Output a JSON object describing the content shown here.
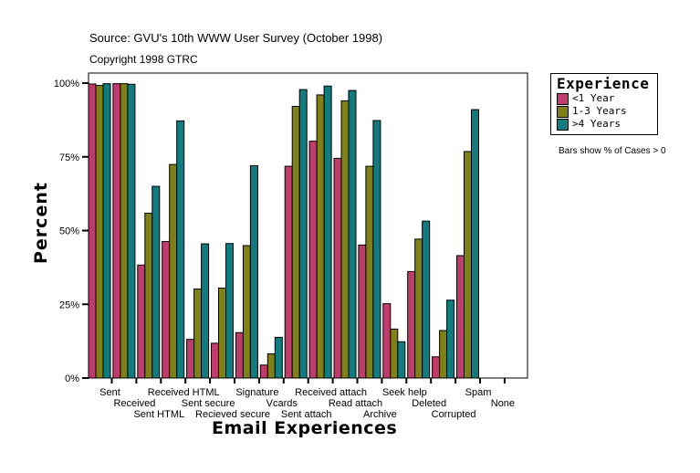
{
  "chart_data": {
    "type": "bar",
    "title": "Source: GVU's 10th WWW User Survey (October 1998)",
    "subtitle": "Copyright 1998 GTRC",
    "xlabel": "Email Experiences",
    "ylabel": "Percent",
    "ylim": [
      0,
      100
    ],
    "yticks": [
      "0%",
      "25%",
      "50%",
      "75%",
      "100%"
    ],
    "note": "Bars show % of Cases > 0",
    "legend_title": "Experience",
    "legend_placement": "right",
    "grid": false,
    "categories": [
      "Sent",
      "Received",
      "Sent HTML",
      "Received HTML",
      "Sent secure",
      "Recieved secure",
      "Signature",
      "Vcards",
      "Sent attach",
      "Received attach",
      "Read attach",
      "Archive",
      "Seek help",
      "Deleted",
      "Corrupted",
      "Spam",
      "None"
    ],
    "series": [
      {
        "name": "<1 Year",
        "color": "#c03c6c",
        "values": [
          99.7,
          99.8,
          38.3,
          46.3,
          13.1,
          11.8,
          15.4,
          4.4,
          71.8,
          80.3,
          74.5,
          45.1,
          25.2,
          36.1,
          7.2,
          41.5,
          0
        ]
      },
      {
        "name": "1-3 Years",
        "color": "#808018",
        "values": [
          99.2,
          99.8,
          55.9,
          72.4,
          30.2,
          30.5,
          44.9,
          8.2,
          92.1,
          96.0,
          94.0,
          71.8,
          16.6,
          47.1,
          16.1,
          76.8,
          0
        ]
      },
      {
        "name": ">4 Years",
        "color": "#107c80",
        "values": [
          99.8,
          99.6,
          65.0,
          87.2,
          45.5,
          45.6,
          72.0,
          13.8,
          97.8,
          99.0,
          97.5,
          87.3,
          12.3,
          53.2,
          26.4,
          91.0,
          0
        ]
      }
    ]
  }
}
